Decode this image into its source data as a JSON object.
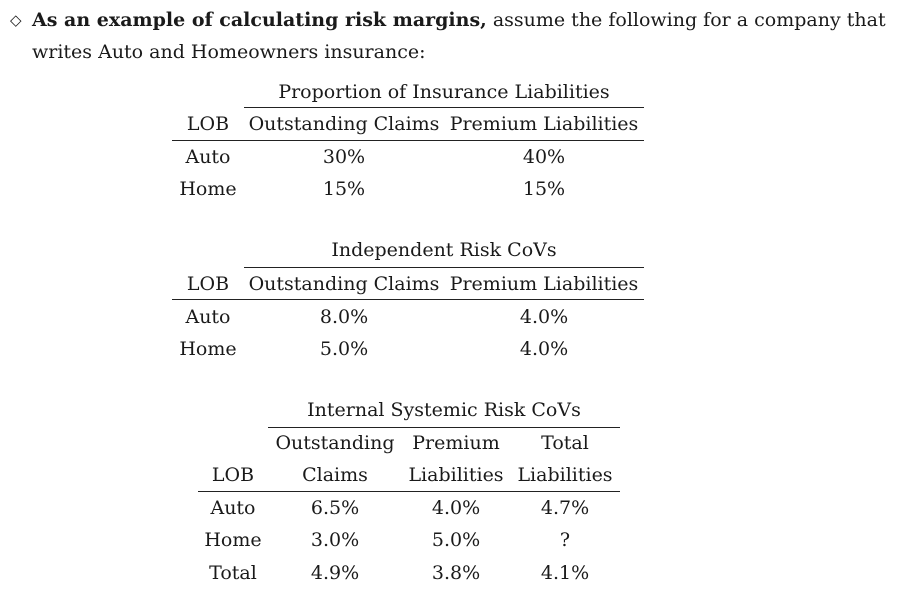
{
  "intro": {
    "bullet": "◇",
    "bold_text": "As an example of calculating risk margins,",
    "rest_text": " assume the following for a company that",
    "line2": "writes Auto and Homeowners insurance:"
  },
  "table1": {
    "title": "Proportion of Insurance Liabilities",
    "headers": [
      "LOB",
      "Outstanding Claims",
      "Premium Liabilities"
    ],
    "rows": [
      [
        "Auto",
        "30%",
        "40%"
      ],
      [
        "Home",
        "15%",
        "15%"
      ]
    ]
  },
  "table2": {
    "title": "Independent Risk CoVs",
    "headers": [
      "LOB",
      "Outstanding Claims",
      "Premium Liabilities"
    ],
    "rows": [
      [
        "Auto",
        "8.0%",
        "4.0%"
      ],
      [
        "Home",
        "5.0%",
        "4.0%"
      ]
    ]
  },
  "table3": {
    "title": "Internal Systemic Risk CoVs",
    "headers_top": [
      "Outstanding",
      "Premium",
      "Total"
    ],
    "headers_bottom": [
      "LOB",
      "Claims",
      "Liabilities",
      "Liabilities"
    ],
    "rows": [
      [
        "Auto",
        "6.5%",
        "4.0%",
        "4.7%"
      ],
      [
        "Home",
        "3.0%",
        "5.0%",
        "?"
      ],
      [
        "Total",
        "4.9%",
        "3.8%",
        "4.1%"
      ]
    ]
  }
}
